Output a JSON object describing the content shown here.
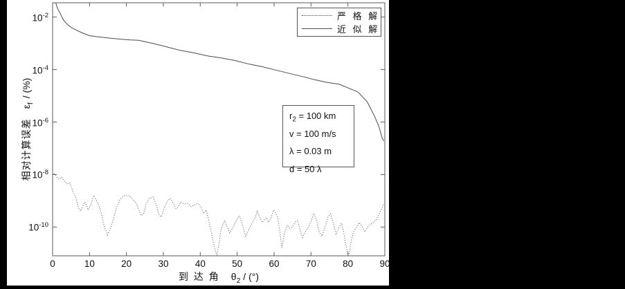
{
  "figure": {
    "canvas_bg": "#000000",
    "panel_bg": "#ffffff",
    "axis_color": "#5a5a5a",
    "line_color": "#4a4a4a",
    "text_color": "#111111"
  },
  "axes": {
    "xlabel": {
      "cn": "到 达 角",
      "sym": "θ",
      "sub": "2",
      "unit": " / (°)"
    },
    "ylabel": {
      "cn": "相对计算误差",
      "sym": "ε",
      "sub": "f",
      "unit": " / (%)"
    }
  },
  "legend": {
    "entries": [
      {
        "label": "严 格 解",
        "style": "dotted"
      },
      {
        "label": "近 似 解",
        "style": "solid"
      }
    ]
  },
  "annotation": {
    "lines": [
      {
        "pre": "r",
        "sub": "2",
        "post": " = 100 km"
      },
      {
        "pre": "v = 100 m/s",
        "sub": "",
        "post": ""
      },
      {
        "pre": "λ = 0.03 m",
        "sub": "",
        "post": ""
      },
      {
        "pre": "d = 50 λ",
        "sub": "",
        "post": ""
      }
    ]
  },
  "chart_data": {
    "type": "line",
    "title": "",
    "xlabel": "到达角 θ2 / (°)",
    "ylabel": "相对计算误差 εf / (%)",
    "xscale": "linear",
    "yscale": "log",
    "xlim": [
      0,
      90
    ],
    "ylim": [
      8e-12,
      0.035
    ],
    "x_ticks": [
      0,
      10,
      20,
      30,
      40,
      50,
      60,
      70,
      80,
      90
    ],
    "y_tick_base": "10",
    "y_tick_exponents": [
      -2,
      -4,
      -6,
      -8,
      -10
    ],
    "grid": false,
    "legend_position": "top-right",
    "annotation_text": [
      "r2 = 100 km",
      "v = 100 m/s",
      "λ = 0.03 m",
      "d = 50 λ"
    ],
    "series": [
      {
        "name": "严格解",
        "style": "dotted",
        "points": [
          [
            0.4,
            1.1e-08
          ],
          [
            1.2,
            8e-09
          ],
          [
            1.8,
            6.5e-09
          ],
          [
            2.5,
            8e-09
          ],
          [
            3.2,
            5.5e-09
          ],
          [
            4.0,
            4.5e-09
          ],
          [
            4.6,
            5e-09
          ],
          [
            5.4,
            2.5e-09
          ],
          [
            6.3,
            1.3e-09
          ],
          [
            7.0,
            5.5e-10
          ],
          [
            7.6,
            4e-10
          ],
          [
            8.3,
            7e-10
          ],
          [
            8.8,
            9e-10
          ],
          [
            9.6,
            4.5e-10
          ],
          [
            10.4,
            7e-10
          ],
          [
            11.1,
            1.6e-09
          ],
          [
            11.8,
            1.1e-09
          ],
          [
            12.5,
            7e-10
          ],
          [
            13.3,
            3e-10
          ],
          [
            14.0,
            1e-10
          ],
          [
            14.9,
            5e-11
          ],
          [
            15.5,
            8e-11
          ],
          [
            16.4,
            1.8e-10
          ],
          [
            17.3,
            5.5e-10
          ],
          [
            18.2,
            1.1e-09
          ],
          [
            19.5,
            1.6e-09
          ],
          [
            20.8,
            1.55e-09
          ],
          [
            21.8,
            1.1e-09
          ],
          [
            22.7,
            7.5e-10
          ],
          [
            23.4,
            4.5e-10
          ],
          [
            24.0,
            2.7e-10
          ],
          [
            24.7,
            3.3e-10
          ],
          [
            25.3,
            7.5e-10
          ],
          [
            26.2,
            1.25e-09
          ],
          [
            27.2,
            1.4e-09
          ],
          [
            28.0,
            7.5e-10
          ],
          [
            28.7,
            3.3e-10
          ],
          [
            29.4,
            2.4e-10
          ],
          [
            30.0,
            4.2e-10
          ],
          [
            30.9,
            9e-10
          ],
          [
            31.9,
            1.25e-09
          ],
          [
            32.8,
            7.5e-10
          ],
          [
            33.4,
            5e-10
          ],
          [
            34.1,
            6e-10
          ],
          [
            34.7,
            9e-10
          ],
          [
            35.6,
            7.5e-10
          ],
          [
            36.6,
            8e-10
          ],
          [
            37.5,
            6e-10
          ],
          [
            38.4,
            7e-10
          ],
          [
            39.4,
            8e-10
          ],
          [
            40.3,
            5.5e-10
          ],
          [
            40.9,
            3.3e-10
          ],
          [
            41.6,
            4.5e-10
          ],
          [
            42.2,
            2e-10
          ],
          [
            43.1,
            5.5e-11
          ],
          [
            43.7,
            2e-11
          ],
          [
            44.5,
            8e-12
          ],
          [
            45.2,
            3e-11
          ],
          [
            45.7,
            9e-11
          ],
          [
            46.6,
            1.8e-10
          ],
          [
            47.3,
            1e-10
          ],
          [
            48.0,
            6e-11
          ],
          [
            48.9,
            1e-10
          ],
          [
            49.8,
            1.8e-10
          ],
          [
            50.6,
            2.7e-10
          ],
          [
            51.5,
            1.1e-10
          ],
          [
            52.3,
            4.5e-11
          ],
          [
            53.0,
            7e-11
          ],
          [
            53.9,
            1.3e-10
          ],
          [
            54.8,
            2.2e-10
          ],
          [
            55.4,
            4e-10
          ],
          [
            56.1,
            2.4e-10
          ],
          [
            56.8,
            1.5e-10
          ],
          [
            57.9,
            2.3e-10
          ],
          [
            58.5,
            1.5e-10
          ],
          [
            59.2,
            2.3e-10
          ],
          [
            59.9,
            4.5e-10
          ],
          [
            60.8,
            2.7e-10
          ],
          [
            61.5,
            8e-11
          ],
          [
            62.1,
            1.6e-11
          ],
          [
            62.8,
            5.5e-11
          ],
          [
            63.6,
            1.2e-10
          ],
          [
            64.2,
            9e-11
          ],
          [
            65.0,
            1e-10
          ],
          [
            65.8,
            1.6e-10
          ],
          [
            66.4,
            1.8e-10
          ],
          [
            67.1,
            7e-11
          ],
          [
            67.7,
            4e-11
          ],
          [
            68.4,
            6.5e-11
          ],
          [
            69.1,
            9e-11
          ],
          [
            69.9,
            1.5e-10
          ],
          [
            70.8,
            3.3e-10
          ],
          [
            71.5,
            1.8e-10
          ],
          [
            72.2,
            6.5e-11
          ],
          [
            73.0,
            4.5e-11
          ],
          [
            73.8,
            1e-10
          ],
          [
            74.6,
            2.4e-10
          ],
          [
            75.3,
            3.2e-10
          ],
          [
            76.0,
            1.5e-10
          ],
          [
            76.8,
            5.5e-11
          ],
          [
            77.5,
            9e-11
          ],
          [
            78.3,
            1.4e-10
          ],
          [
            79.0,
            5e-11
          ],
          [
            79.6,
            1.6e-11
          ],
          [
            80.2,
            8e-12
          ],
          [
            80.9,
            3e-11
          ],
          [
            81.6,
            7e-11
          ],
          [
            82.4,
            1e-10
          ],
          [
            83.1,
            1.5e-10
          ],
          [
            83.9,
            1e-10
          ],
          [
            84.6,
            6.5e-11
          ],
          [
            85.4,
            1e-10
          ],
          [
            86.2,
            1.3e-10
          ],
          [
            87.0,
            1.5e-10
          ],
          [
            87.8,
            2e-10
          ],
          [
            88.6,
            3.5e-10
          ],
          [
            89.3,
            5.5e-10
          ],
          [
            89.8,
            8e-10
          ]
        ]
      },
      {
        "name": "近似解",
        "style": "solid",
        "points": [
          [
            0.85,
            0.035
          ],
          [
            1.3,
            0.022
          ],
          [
            2.1,
            0.0135
          ],
          [
            2.6,
            0.0093
          ],
          [
            3.2,
            0.0069
          ],
          [
            4.1,
            0.0051
          ],
          [
            5.1,
            0.004
          ],
          [
            6.4,
            0.0032
          ],
          [
            8,
            0.0025
          ],
          [
            10,
            0.00195
          ],
          [
            12.5,
            0.00175
          ],
          [
            15,
            0.0016
          ],
          [
            18,
            0.00145
          ],
          [
            21,
            0.00135
          ],
          [
            23.3,
            0.0013
          ],
          [
            27,
            0.001
          ],
          [
            30.8,
            0.00074
          ],
          [
            34.5,
            0.00054
          ],
          [
            38.3,
            0.00043
          ],
          [
            42,
            0.00033
          ],
          [
            45.8,
            0.000275
          ],
          [
            49.5,
            0.00022
          ],
          [
            53.3,
            0.00016
          ],
          [
            57,
            0.000126
          ],
          [
            60.8,
            9.3e-05
          ],
          [
            64.5,
            6.9e-05
          ],
          [
            67.7,
            5.4e-05
          ],
          [
            71,
            4.1e-05
          ],
          [
            74,
            3.3e-05
          ],
          [
            77.7,
            2.75e-05
          ],
          [
            80,
            2e-05
          ],
          [
            82.7,
            1.4e-05
          ],
          [
            85.2,
            6e-06
          ],
          [
            87.1,
            1.8e-06
          ],
          [
            88.4,
            6.8e-07
          ],
          [
            89.3,
            2.4e-07
          ],
          [
            89.7,
            1.9e-07
          ]
        ]
      }
    ]
  }
}
